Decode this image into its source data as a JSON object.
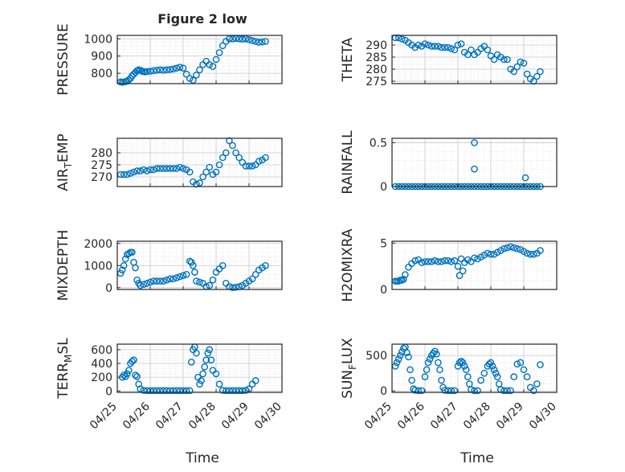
{
  "figure": {
    "title": "Figure 2 low",
    "xlabel": "Time",
    "date_ticks": [
      "04/25",
      "04/26",
      "04/27",
      "04/28",
      "04/29",
      "04/30"
    ]
  },
  "chart_data": [
    {
      "type": "scatter",
      "ylabel_main": "PRESSURE",
      "ylabel_sub": "",
      "ylabel_tail": "",
      "xlim": [
        0,
        5
      ],
      "ylim": [
        740,
        1020
      ],
      "yticks": [
        800,
        900,
        1000
      ],
      "x": [
        0.1,
        0.15,
        0.2,
        0.25,
        0.3,
        0.35,
        0.4,
        0.45,
        0.5,
        0.55,
        0.6,
        0.65,
        0.7,
        0.75,
        0.8,
        0.85,
        0.9,
        1.0,
        1.1,
        1.2,
        1.3,
        1.4,
        1.5,
        1.6,
        1.7,
        1.8,
        1.9,
        2.0,
        2.1,
        2.2,
        2.3,
        2.4,
        2.5,
        2.6,
        2.7,
        2.8,
        2.9,
        3.0,
        3.1,
        3.2,
        3.3,
        3.4,
        3.5,
        3.6,
        3.7,
        3.8,
        3.9,
        4.0,
        4.1,
        4.2,
        4.3,
        4.4,
        4.5
      ],
      "values": [
        750,
        748,
        750,
        752,
        755,
        762,
        770,
        785,
        795,
        805,
        815,
        820,
        818,
        812,
        810,
        808,
        810,
        812,
        815,
        818,
        820,
        818,
        820,
        822,
        825,
        830,
        835,
        830,
        795,
        770,
        760,
        790,
        820,
        850,
        870,
        850,
        840,
        880,
        920,
        960,
        985,
        1000,
        1000,
        1002,
        1000,
        998,
        1000,
        995,
        990,
        985,
        980,
        982,
        985
      ]
    },
    {
      "type": "scatter",
      "ylabel_main": "THETA",
      "ylabel_sub": "",
      "ylabel_tail": "",
      "xlim": [
        0,
        5
      ],
      "ylim": [
        274,
        294
      ],
      "yticks": [
        275,
        280,
        285,
        290
      ],
      "x": [
        0.1,
        0.2,
        0.3,
        0.4,
        0.5,
        0.6,
        0.7,
        0.8,
        0.9,
        1.0,
        1.1,
        1.2,
        1.3,
        1.4,
        1.5,
        1.6,
        1.7,
        1.8,
        1.9,
        2.0,
        2.1,
        2.2,
        2.3,
        2.4,
        2.5,
        2.6,
        2.7,
        2.8,
        2.9,
        3.0,
        3.1,
        3.2,
        3.3,
        3.4,
        3.5,
        3.6,
        3.7,
        3.8,
        3.9,
        4.0,
        4.1,
        4.2,
        4.3,
        4.4,
        4.5
      ],
      "values": [
        293,
        293,
        292.5,
        292,
        291,
        290,
        289,
        290,
        289.5,
        290.5,
        290,
        289.5,
        289.5,
        289.5,
        289,
        289,
        289,
        288.5,
        288,
        290,
        290.5,
        287,
        286,
        288,
        286,
        287,
        288.5,
        289.5,
        288,
        285.5,
        284,
        286,
        285,
        284,
        284,
        280,
        279,
        281,
        283,
        282.5,
        278,
        276,
        275,
        277,
        279
      ]
    },
    {
      "type": "scatter",
      "ylabel_main": "AIR",
      "ylabel_sub": "T",
      "ylabel_tail": "EMP",
      "xlim": [
        0,
        5
      ],
      "ylim": [
        266,
        286
      ],
      "yticks": [
        270,
        275,
        280
      ],
      "x": [
        0.1,
        0.2,
        0.3,
        0.4,
        0.5,
        0.6,
        0.7,
        0.8,
        0.9,
        1.0,
        1.1,
        1.2,
        1.3,
        1.4,
        1.5,
        1.6,
        1.7,
        1.8,
        1.9,
        2.0,
        2.1,
        2.2,
        2.3,
        2.4,
        2.5,
        2.6,
        2.7,
        2.8,
        2.9,
        3.0,
        3.1,
        3.2,
        3.3,
        3.4,
        3.5,
        3.6,
        3.7,
        3.8,
        3.9,
        4.0,
        4.1,
        4.2,
        4.3,
        4.4,
        4.5
      ],
      "values": [
        271,
        271,
        271,
        271.5,
        272,
        272.5,
        272.5,
        273,
        272.5,
        273,
        273,
        273.5,
        273.5,
        273.5,
        273.5,
        273.5,
        273.5,
        273.5,
        274,
        273.5,
        273,
        272,
        268,
        267,
        267.5,
        270,
        272,
        274,
        271,
        272,
        275,
        278,
        280,
        285,
        283,
        280,
        278,
        276,
        274.5,
        274.5,
        274.5,
        275,
        276.5,
        277,
        278
      ]
    },
    {
      "type": "scatter",
      "ylabel_main": "RAINFALL",
      "ylabel_sub": "",
      "ylabel_tail": "",
      "xlim": [
        0,
        5
      ],
      "ylim": [
        0,
        0.55
      ],
      "yticks": [
        0,
        0.5
      ],
      "x": [
        0.1,
        0.2,
        0.3,
        0.4,
        0.5,
        0.6,
        0.7,
        0.8,
        0.9,
        1.0,
        1.1,
        1.2,
        1.3,
        1.4,
        1.5,
        1.6,
        1.7,
        1.8,
        1.9,
        2.0,
        2.1,
        2.2,
        2.3,
        2.4,
        2.5,
        2.6,
        2.7,
        2.8,
        2.9,
        3.0,
        3.1,
        3.2,
        3.3,
        3.4,
        3.5,
        3.6,
        3.7,
        3.8,
        3.9,
        4.0,
        4.1,
        4.2,
        4.3,
        4.4,
        4.5,
        2.5,
        2.5,
        4.05
      ],
      "values": [
        0,
        0,
        0,
        0,
        0,
        0,
        0,
        0,
        0,
        0,
        0,
        0,
        0,
        0,
        0,
        0,
        0,
        0,
        0,
        0,
        0,
        0,
        0,
        0,
        0,
        0,
        0,
        0,
        0,
        0,
        0,
        0,
        0,
        0,
        0,
        0,
        0,
        0,
        0,
        0,
        0,
        0,
        0,
        0,
        0,
        0.5,
        0.2,
        0.1
      ]
    },
    {
      "type": "scatter",
      "ylabel_main": "MIXDEPTH",
      "ylabel_sub": "",
      "ylabel_tail": "",
      "xlim": [
        0,
        5
      ],
      "ylim": [
        -80,
        2100
      ],
      "yticks": [
        0,
        1000,
        2000
      ],
      "x": [
        0.1,
        0.15,
        0.2,
        0.25,
        0.3,
        0.35,
        0.4,
        0.45,
        0.5,
        0.55,
        0.6,
        0.65,
        0.7,
        0.8,
        0.9,
        1.0,
        1.1,
        1.2,
        1.3,
        1.4,
        1.5,
        1.6,
        1.7,
        1.8,
        1.9,
        2.0,
        2.1,
        2.2,
        2.25,
        2.3,
        2.35,
        2.4,
        2.5,
        2.6,
        2.7,
        2.8,
        2.9,
        3.0,
        3.1,
        3.2,
        3.3,
        3.4,
        3.5,
        3.6,
        3.7,
        3.8,
        3.9,
        4.0,
        4.1,
        4.2,
        4.3,
        4.4,
        4.5
      ],
      "values": [
        650,
        800,
        1000,
        1300,
        1500,
        1550,
        1600,
        1600,
        1150,
        900,
        350,
        200,
        100,
        150,
        200,
        250,
        300,
        300,
        300,
        300,
        350,
        400,
        400,
        450,
        500,
        550,
        600,
        1200,
        1150,
        1000,
        700,
        300,
        250,
        200,
        50,
        100,
        350,
        700,
        850,
        1000,
        200,
        50,
        10,
        20,
        50,
        100,
        200,
        300,
        400,
        600,
        800,
        900,
        1000
      ]
    },
    {
      "type": "scatter",
      "ylabel_main": "H2OMIXRA",
      "ylabel_sub": "",
      "ylabel_tail": "",
      "xlim": [
        0,
        5
      ],
      "ylim": [
        0,
        5.2
      ],
      "yticks": [
        0,
        5
      ],
      "x": [
        0.1,
        0.15,
        0.2,
        0.25,
        0.3,
        0.35,
        0.4,
        0.5,
        0.6,
        0.7,
        0.8,
        0.9,
        1.0,
        1.1,
        1.2,
        1.3,
        1.4,
        1.5,
        1.6,
        1.7,
        1.8,
        1.9,
        2.0,
        2.1,
        2.2,
        2.3,
        2.4,
        2.5,
        2.6,
        2.7,
        2.8,
        2.9,
        3.0,
        3.1,
        3.2,
        3.3,
        3.4,
        3.5,
        3.6,
        3.7,
        3.8,
        3.9,
        4.0,
        4.1,
        4.2,
        4.3,
        4.4,
        4.5,
        2.05,
        2.15
      ],
      "values": [
        0.9,
        0.9,
        0.9,
        1.0,
        1.0,
        1.1,
        1.6,
        2.4,
        2.8,
        3.1,
        3.2,
        2.9,
        3.0,
        3.0,
        3.0,
        3.1,
        3.0,
        3.0,
        3.1,
        3.1,
        3.0,
        3.1,
        2.5,
        3.3,
        2.9,
        3.2,
        3.0,
        3.4,
        3.3,
        3.5,
        3.7,
        3.9,
        3.8,
        3.8,
        4.0,
        4.2,
        4.4,
        4.5,
        4.6,
        4.5,
        4.4,
        4.3,
        4.1,
        3.9,
        3.8,
        3.8,
        3.9,
        4.2,
        1.5,
        2.0
      ]
    },
    {
      "type": "scatter",
      "ylabel_main": "TERR",
      "ylabel_sub": "M",
      "ylabel_tail": "SL",
      "xlim": [
        0,
        5
      ],
      "ylim": [
        -20,
        680
      ],
      "yticks": [
        0,
        200,
        400,
        600
      ],
      "x": [
        0.15,
        0.2,
        0.25,
        0.3,
        0.35,
        0.4,
        0.45,
        0.5,
        0.55,
        0.6,
        0.65,
        0.7,
        0.8,
        0.9,
        1.0,
        1.1,
        1.2,
        1.3,
        1.4,
        1.5,
        1.6,
        1.7,
        1.8,
        1.9,
        2.0,
        2.1,
        2.2,
        2.25,
        2.3,
        2.35,
        2.4,
        2.45,
        2.5,
        2.55,
        2.6,
        2.65,
        2.7,
        2.75,
        2.8,
        2.85,
        2.9,
        3.0,
        3.1,
        3.2,
        3.3,
        3.4,
        3.5,
        3.6,
        3.7,
        3.8,
        3.9,
        4.0,
        4.1,
        4.2
      ],
      "values": [
        200,
        230,
        210,
        250,
        300,
        400,
        430,
        450,
        230,
        210,
        100,
        30,
        10,
        5,
        5,
        5,
        5,
        5,
        5,
        5,
        5,
        5,
        5,
        5,
        5,
        5,
        5,
        420,
        600,
        640,
        550,
        200,
        100,
        150,
        250,
        350,
        450,
        550,
        600,
        450,
        300,
        250,
        100,
        10,
        5,
        5,
        5,
        5,
        5,
        5,
        10,
        30,
        100,
        150
      ]
    },
    {
      "type": "scatter",
      "ylabel_main": "SUN",
      "ylabel_sub": "F",
      "ylabel_tail": "LUX",
      "xlim": [
        0,
        5
      ],
      "ylim": [
        -20,
        660
      ],
      "yticks": [
        0,
        500
      ],
      "x": [
        0.1,
        0.15,
        0.2,
        0.25,
        0.3,
        0.35,
        0.4,
        0.45,
        0.5,
        0.55,
        0.6,
        0.65,
        0.7,
        0.8,
        0.9,
        1.0,
        1.05,
        1.1,
        1.15,
        1.2,
        1.25,
        1.3,
        1.35,
        1.4,
        1.45,
        1.5,
        1.55,
        1.6,
        1.7,
        1.8,
        1.9,
        2.0,
        2.05,
        2.1,
        2.15,
        2.2,
        2.25,
        2.3,
        2.35,
        2.4,
        2.5,
        2.6,
        2.7,
        2.8,
        2.9,
        2.95,
        3.0,
        3.05,
        3.1,
        3.15,
        3.2,
        3.25,
        3.3,
        3.4,
        3.5,
        3.6,
        3.7,
        3.8,
        3.9,
        4.0,
        4.1,
        4.2,
        4.3,
        4.4,
        4.5
      ],
      "values": [
        350,
        400,
        450,
        500,
        550,
        600,
        620,
        540,
        480,
        300,
        150,
        30,
        10,
        5,
        5,
        200,
        300,
        400,
        450,
        500,
        530,
        560,
        520,
        400,
        300,
        150,
        50,
        10,
        5,
        5,
        5,
        350,
        400,
        420,
        400,
        350,
        300,
        200,
        100,
        20,
        5,
        5,
        150,
        250,
        350,
        380,
        400,
        350,
        300,
        250,
        200,
        100,
        20,
        5,
        5,
        5,
        200,
        380,
        400,
        300,
        200,
        50,
        5,
        100,
        370
      ]
    }
  ]
}
